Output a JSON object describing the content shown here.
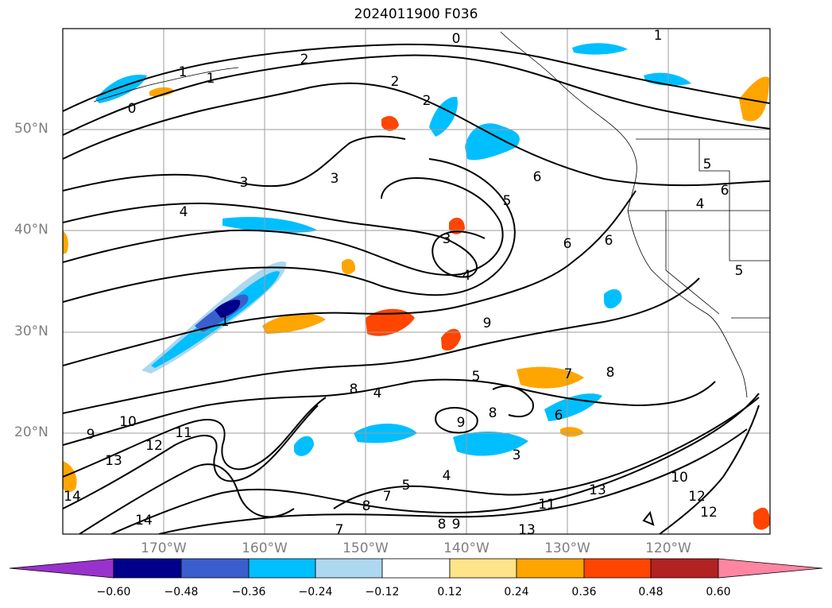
{
  "title": "2024011900 F036",
  "latitude_labels": [
    "50°N",
    "40°N",
    "30°N",
    "20°N"
  ],
  "longitude_labels": [
    "170°W",
    "160°W",
    "150°W",
    "140°W",
    "130°W",
    "120°W"
  ],
  "colorbar": {
    "ticks": [
      "−0.60",
      "−0.48",
      "−0.36",
      "−0.24",
      "−0.12",
      "0.12",
      "0.24",
      "0.36",
      "0.48",
      "0.60"
    ],
    "colors": [
      "#9932cc",
      "#00008b",
      "#3a5fcd",
      "#00bfff",
      "#add8f0",
      "#ffffff",
      "#ffe48a",
      "#ffa500",
      "#ff4500",
      "#b22222",
      "#ff85a2"
    ]
  },
  "contour_labels": [
    "0",
    "1",
    "2",
    "3",
    "4",
    "5",
    "6",
    "7",
    "8",
    "9",
    "10",
    "11",
    "12",
    "13",
    "14"
  ],
  "colors": {
    "grid": "#9e9e9e",
    "contour": "#000000",
    "axis_label": "#7f7f7f"
  }
}
